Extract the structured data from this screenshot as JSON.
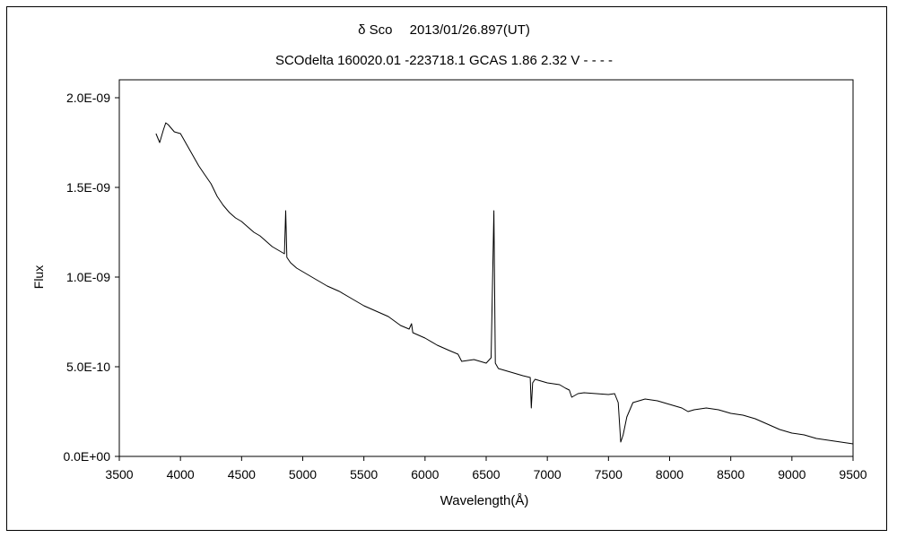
{
  "chart_data": {
    "type": "line",
    "title": "δ Sco　 2013/01/26.897(UT)",
    "subtitle": "SCOdelta 160020.01 -223718.1 GCAS 1.86 2.32 V - - - -",
    "xlabel": "Wavelength(Å)",
    "ylabel": "Flux",
    "xlim": [
      3500,
      9500
    ],
    "ylim": [
      0,
      2.1e-09
    ],
    "x_ticks": [
      "3500",
      "4000",
      "4500",
      "5000",
      "5500",
      "6000",
      "6500",
      "7000",
      "7500",
      "8000",
      "8500",
      "9000",
      "9500"
    ],
    "y_ticks": [
      "0.0E+00",
      "5.0E-10",
      "1.0E-09",
      "1.5E-09",
      "2.0E-09"
    ],
    "grid": false,
    "legend": "none",
    "line_color": "#000000",
    "series": [
      {
        "x": [
          3800,
          3830,
          3860,
          3880,
          3900,
          3950,
          4000,
          4050,
          4100,
          4150,
          4200,
          4250,
          4300,
          4350,
          4400,
          4450,
          4500,
          4550,
          4600,
          4650,
          4700,
          4750,
          4800,
          4850,
          4861,
          4870,
          4900,
          4950,
          5000,
          5050,
          5100,
          5150,
          5200,
          5300,
          5400,
          5500,
          5600,
          5700,
          5800,
          5870,
          5890,
          5900,
          6000,
          6100,
          6200,
          6270,
          6300,
          6400,
          6500,
          6540,
          6563,
          6575,
          6600,
          6700,
          6800,
          6860,
          6869,
          6880,
          6900,
          6950,
          7000,
          7100,
          7150,
          7180,
          7200,
          7250,
          7300,
          7400,
          7500,
          7550,
          7580,
          7600,
          7620,
          7650,
          7700,
          7800,
          7900,
          8000,
          8100,
          8150,
          8200,
          8300,
          8400,
          8500,
          8600,
          8700,
          8800,
          8900,
          9000,
          9100,
          9200,
          9300,
          9400,
          9500
        ],
        "y": [
          1.8e-09,
          1.75e-09,
          1.82e-09,
          1.86e-09,
          1.85e-09,
          1.81e-09,
          1.8e-09,
          1.74e-09,
          1.68e-09,
          1.62e-09,
          1.57e-09,
          1.52e-09,
          1.45e-09,
          1.4e-09,
          1.36e-09,
          1.33e-09,
          1.31e-09,
          1.28e-09,
          1.25e-09,
          1.23e-09,
          1.2e-09,
          1.17e-09,
          1.15e-09,
          1.13e-09,
          1.37e-09,
          1.11e-09,
          1.08e-09,
          1.05e-09,
          1.03e-09,
          1.01e-09,
          9.9e-10,
          9.7e-10,
          9.5e-10,
          9.2e-10,
          8.8e-10,
          8.4e-10,
          8.1e-10,
          7.8e-10,
          7.3e-10,
          7.1e-10,
          7.4e-10,
          6.9e-10,
          6.6e-10,
          6.2e-10,
          5.9e-10,
          5.7e-10,
          5.3e-10,
          5.4e-10,
          5.2e-10,
          5.5e-10,
          1.37e-09,
          5.2e-10,
          4.9e-10,
          4.7e-10,
          4.5e-10,
          4.4e-10,
          2.7e-10,
          4.1e-10,
          4.3e-10,
          4.2e-10,
          4.1e-10,
          4e-10,
          3.8e-10,
          3.7e-10,
          3.3e-10,
          3.5e-10,
          3.55e-10,
          3.5e-10,
          3.45e-10,
          3.5e-10,
          3e-10,
          8e-11,
          1.2e-10,
          2.2e-10,
          3e-10,
          3.2e-10,
          3.1e-10,
          2.9e-10,
          2.7e-10,
          2.5e-10,
          2.6e-10,
          2.7e-10,
          2.6e-10,
          2.4e-10,
          2.3e-10,
          2.1e-10,
          1.8e-10,
          1.5e-10,
          1.3e-10,
          1.2e-10,
          1e-10,
          9e-11,
          8e-11,
          7e-11
        ]
      }
    ]
  }
}
